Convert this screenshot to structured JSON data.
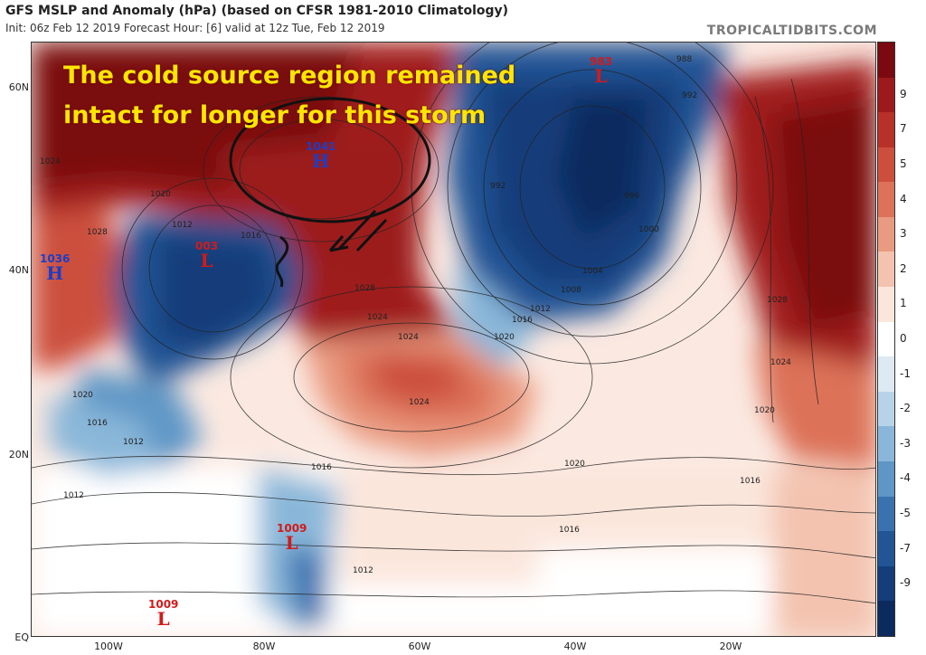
{
  "header": {
    "title": "GFS MSLP and Anomaly (hPa) (based on CFSR 1981-2010 Climatology)",
    "subtitle": "Init: 06z Feb 12 2019   Forecast Hour: [6]   valid at 12z Tue, Feb 12 2019",
    "brand": "TROPICALTIDBITS.COM"
  },
  "annotation": {
    "line1": "The cold source region remained",
    "line2": "intact for longer for this storm"
  },
  "lat_labels": [
    "60N",
    "40N",
    "20N",
    "EQ"
  ],
  "lon_labels": [
    "100W",
    "80W",
    "60W",
    "40W",
    "20W"
  ],
  "colorbar": {
    "labels": [
      "9",
      "7",
      "5",
      "4",
      "3",
      "2",
      "1",
      "0",
      "-1",
      "-2",
      "-3",
      "-4",
      "-5",
      "-7",
      "-9"
    ],
    "colors": [
      "#7a0a10",
      "#9c1a1c",
      "#b83128",
      "#cc4f3d",
      "#dc7259",
      "#e99a80",
      "#f3c3af",
      "#fbe6dc",
      "#ffffff",
      "#dde9f3",
      "#b7d3e8",
      "#8ab7d9",
      "#5e97c6",
      "#3a72b0",
      "#215596",
      "#143d7a",
      "#0b2a5e"
    ]
  },
  "systems": [
    {
      "type": "H",
      "pressure": "1041",
      "kind": "hi"
    },
    {
      "type": "H",
      "pressure": "1036",
      "kind": "hi"
    },
    {
      "type": "L",
      "pressure": "003",
      "kind": "lo"
    },
    {
      "type": "L",
      "pressure": "983",
      "kind": "lo"
    },
    {
      "type": "L",
      "pressure": "1009",
      "kind": "lo"
    },
    {
      "type": "L",
      "pressure": "1009",
      "kind": "lo"
    }
  ],
  "isobar_labels": [
    "1024",
    "1028",
    "1020",
    "1012",
    "1016",
    "1024",
    "1024",
    "1028",
    "1020",
    "1016",
    "1012",
    "1008",
    "1004",
    "1000",
    "996",
    "992",
    "992",
    "988",
    "1028",
    "1024",
    "1020",
    "1016",
    "1016",
    "1016",
    "1020",
    "1012",
    "1012",
    "1012",
    "1016",
    "1020",
    "1024",
    "1028"
  ]
}
